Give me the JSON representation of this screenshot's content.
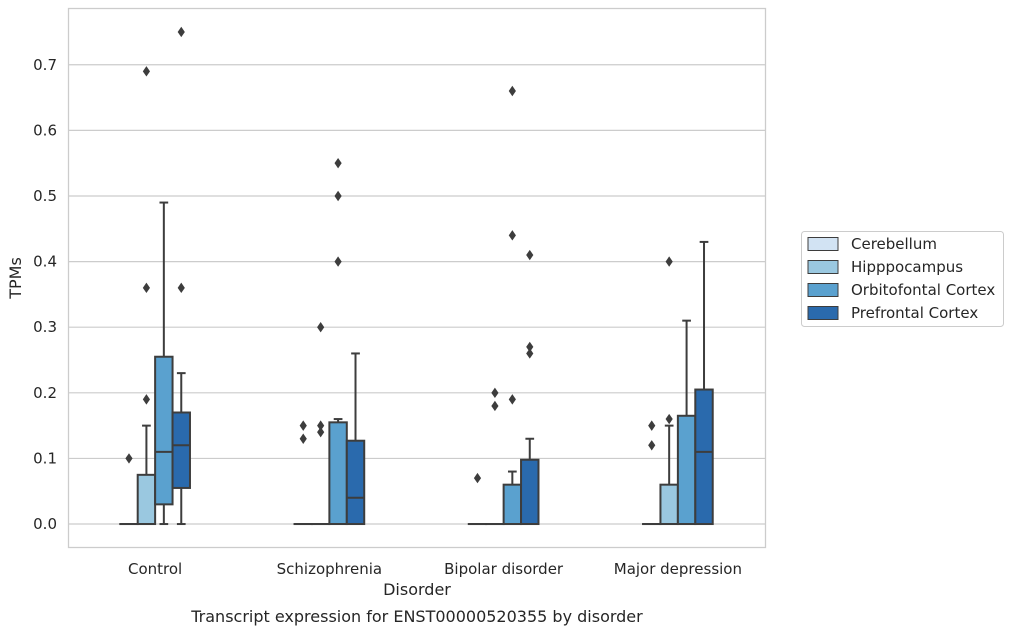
{
  "chart_data": {
    "type": "box",
    "caption": "Transcript expression for ENST00000520355 by disorder",
    "xlabel": "Disorder",
    "ylabel": "TPMs",
    "ylim": [
      -0.035,
      0.785
    ],
    "yticks": [
      "0.0",
      "0.1",
      "0.2",
      "0.3",
      "0.4",
      "0.5",
      "0.6",
      "0.7"
    ],
    "grid": true,
    "legend_position": "right",
    "categories": [
      "Control",
      "Schizophrenia",
      "Bipolar disorder",
      "Major depression"
    ],
    "series": [
      {
        "name": "Cerebellum",
        "color": "#d2e3f3",
        "boxes": [
          {
            "q1": 0,
            "median": 0,
            "q3": 0,
            "whisker_low": 0,
            "whisker_high": 0,
            "outliers": [
              0.1
            ]
          },
          {
            "q1": 0,
            "median": 0,
            "q3": 0,
            "whisker_low": 0,
            "whisker_high": 0,
            "outliers": [
              0.13,
              0.15
            ]
          },
          {
            "q1": 0,
            "median": 0,
            "q3": 0,
            "whisker_low": 0,
            "whisker_high": 0,
            "outliers": [
              0.07
            ]
          },
          {
            "q1": 0,
            "median": 0,
            "q3": 0,
            "whisker_low": 0,
            "whisker_high": 0,
            "outliers": [
              0.12,
              0.15
            ]
          }
        ]
      },
      {
        "name": "Hipppocampus",
        "color": "#9ac8e0",
        "boxes": [
          {
            "q1": 0,
            "median": 0,
            "q3": 0.075,
            "whisker_low": 0,
            "whisker_high": 0.15,
            "outliers": [
              0.19,
              0.36,
              0.69
            ]
          },
          {
            "q1": 0,
            "median": 0,
            "q3": 0,
            "whisker_low": 0,
            "whisker_high": 0,
            "outliers": [
              0.14,
              0.15,
              0.3
            ]
          },
          {
            "q1": 0,
            "median": 0,
            "q3": 0,
            "whisker_low": 0,
            "whisker_high": 0,
            "outliers": [
              0.18,
              0.2
            ]
          },
          {
            "q1": 0,
            "median": 0,
            "q3": 0.06,
            "whisker_low": 0,
            "whisker_high": 0.15,
            "outliers": [
              0.16,
              0.4
            ]
          }
        ]
      },
      {
        "name": "Orbitofontal Cortex",
        "color": "#5aa1cf",
        "boxes": [
          {
            "q1": 0.03,
            "median": 0.11,
            "q3": 0.255,
            "whisker_low": 0,
            "whisker_high": 0.49,
            "outliers": []
          },
          {
            "q1": 0,
            "median": 0,
            "q3": 0.155,
            "whisker_low": 0,
            "whisker_high": 0.16,
            "outliers": [
              0.4,
              0.5,
              0.55
            ]
          },
          {
            "q1": 0,
            "median": 0,
            "q3": 0.06,
            "whisker_low": 0,
            "whisker_high": 0.08,
            "outliers": [
              0.19,
              0.44,
              0.66
            ]
          },
          {
            "q1": 0,
            "median": 0,
            "q3": 0.165,
            "whisker_low": 0,
            "whisker_high": 0.31,
            "outliers": []
          }
        ]
      },
      {
        "name": "Prefrontal Cortex",
        "color": "#2a6aad",
        "boxes": [
          {
            "q1": 0.055,
            "median": 0.12,
            "q3": 0.17,
            "whisker_low": 0,
            "whisker_high": 0.23,
            "outliers": [
              0.36,
              0.75
            ]
          },
          {
            "q1": 0,
            "median": 0.04,
            "q3": 0.127,
            "whisker_low": 0,
            "whisker_high": 0.26,
            "outliers": []
          },
          {
            "q1": 0,
            "median": 0,
            "q3": 0.098,
            "whisker_low": 0,
            "whisker_high": 0.13,
            "outliers": [
              0.26,
              0.27,
              0.41
            ]
          },
          {
            "q1": 0,
            "median": 0.11,
            "q3": 0.205,
            "whisker_low": 0,
            "whisker_high": 0.43,
            "outliers": []
          }
        ]
      }
    ]
  }
}
